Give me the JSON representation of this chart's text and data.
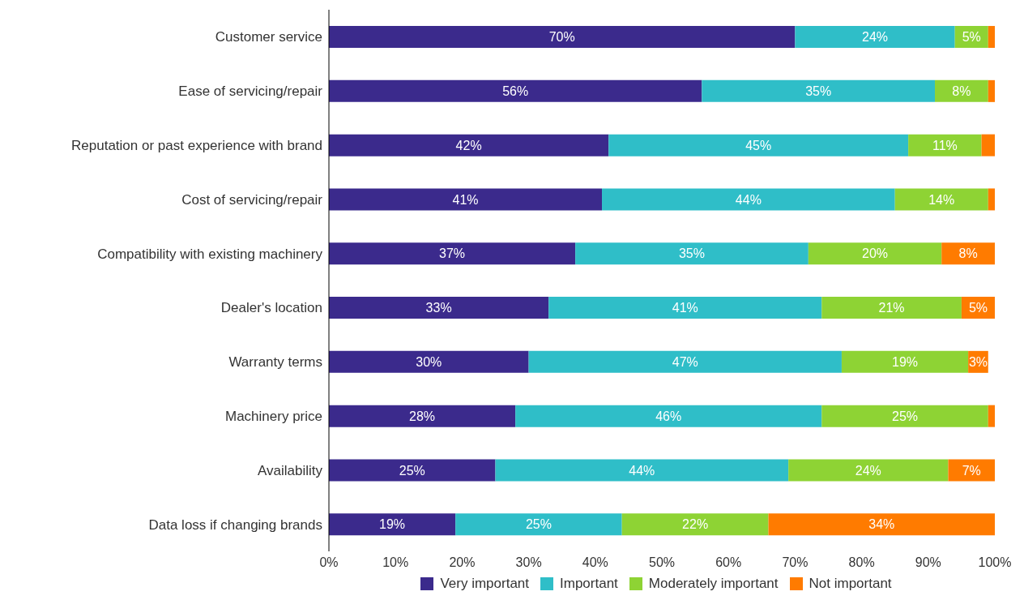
{
  "chart_data": {
    "type": "bar",
    "orientation": "horizontal",
    "stacked": true,
    "categories": [
      "Customer service",
      "Ease of servicing/repair",
      "Reputation or past experience with brand",
      "Cost of servicing/repair",
      "Compatibility with existing machinery",
      "Dealer's location",
      "Warranty terms",
      "Machinery price",
      "Availability",
      "Data loss if changing brands"
    ],
    "series": [
      {
        "name": "Very important",
        "color": "#3b2a8c",
        "values": [
          70,
          56,
          42,
          41,
          37,
          33,
          30,
          28,
          25,
          19
        ],
        "value_labels": [
          "70%",
          "56%",
          "42%",
          "41%",
          "37%",
          "33%",
          "30%",
          "28%",
          "25%",
          "19%"
        ]
      },
      {
        "name": "Important",
        "color": "#2fbec8",
        "values": [
          24,
          35,
          45,
          44,
          35,
          41,
          47,
          46,
          44,
          25
        ],
        "value_labels": [
          "24%",
          "35%",
          "45%",
          "44%",
          "35%",
          "41%",
          "47%",
          "46%",
          "44%",
          "25%"
        ]
      },
      {
        "name": "Moderately important",
        "color": "#8ed334",
        "values": [
          5,
          8,
          11,
          14,
          20,
          21,
          19,
          25,
          24,
          22
        ],
        "value_labels": [
          "5%",
          "8%",
          "11%",
          "14%",
          "20%",
          "21%",
          "19%",
          "25%",
          "24%",
          "22%"
        ]
      },
      {
        "name": "Not important",
        "color": "#ff7b00",
        "values": [
          1,
          1,
          2,
          1,
          8,
          5,
          3,
          1,
          7,
          34
        ],
        "value_labels": [
          null,
          null,
          null,
          null,
          "8%",
          "5%",
          "3%",
          null,
          "7%",
          "34%"
        ]
      }
    ],
    "xlim": [
      0,
      100
    ],
    "xticks": [
      {
        "value": 0,
        "label": "0%"
      },
      {
        "value": 10,
        "label": "10%"
      },
      {
        "value": 20,
        "label": "20%"
      },
      {
        "value": 30,
        "label": "30%"
      },
      {
        "value": 40,
        "label": "40%"
      },
      {
        "value": 50,
        "label": "50%"
      },
      {
        "value": 60,
        "label": "60%"
      },
      {
        "value": 70,
        "label": "70%"
      },
      {
        "value": 80,
        "label": "80%"
      },
      {
        "value": 90,
        "label": "90%"
      },
      {
        "value": 100,
        "label": "100%"
      }
    ],
    "grid": false,
    "legend": "bottom"
  }
}
